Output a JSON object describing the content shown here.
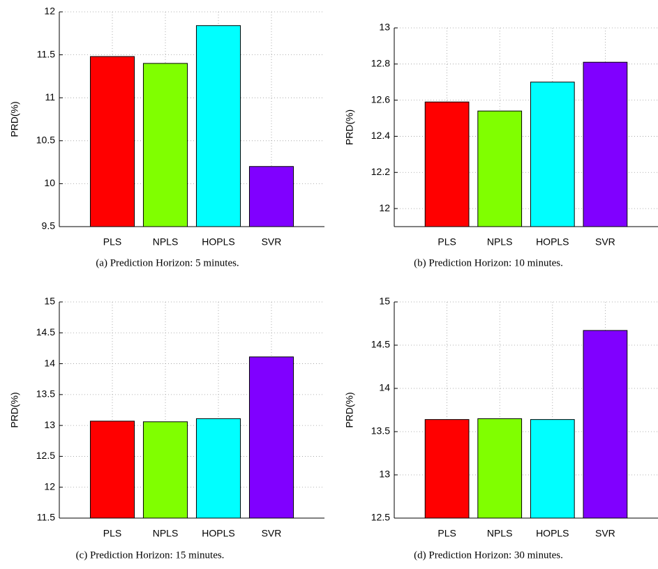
{
  "chart_data": [
    {
      "type": "bar",
      "caption": "(a)  Prediction Horizon: 5 minutes.",
      "y_label": "PRD(%)",
      "categories": [
        "PLS",
        "NPLS",
        "HOPLS",
        "SVR"
      ],
      "values": [
        11.48,
        11.4,
        11.84,
        10.2
      ],
      "colors": [
        "#ff0000",
        "#80ff00",
        "#00ffff",
        "#8000ff"
      ],
      "ylim": [
        9.5,
        12
      ],
      "yticks": [
        9.5,
        10,
        10.5,
        11,
        11.5,
        12
      ],
      "grid": true
    },
    {
      "type": "bar",
      "caption": "(b) Prediction Horizon: 10 minutes.",
      "y_label": "PRD(%)",
      "categories": [
        "PLS",
        "NPLS",
        "HOPLS",
        "SVR"
      ],
      "values": [
        12.59,
        12.54,
        12.7,
        12.81
      ],
      "colors": [
        "#ff0000",
        "#80ff00",
        "#00ffff",
        "#8000ff"
      ],
      "ylim": [
        11.9,
        13
      ],
      "yticks": [
        12,
        12.2,
        12.4,
        12.6,
        12.8,
        13
      ],
      "grid": true
    },
    {
      "type": "bar",
      "caption": "(c) Prediction Horizon: 15 minutes.",
      "y_label": "PRD(%)",
      "categories": [
        "PLS",
        "NPLS",
        "HOPLS",
        "SVR"
      ],
      "values": [
        13.07,
        13.06,
        13.11,
        14.11
      ],
      "colors": [
        "#ff0000",
        "#80ff00",
        "#00ffff",
        "#8000ff"
      ],
      "ylim": [
        11.5,
        15
      ],
      "yticks": [
        11.5,
        12,
        12.5,
        13,
        13.5,
        14,
        14.5,
        15
      ],
      "grid": true
    },
    {
      "type": "bar",
      "caption": "(d) Prediction Horizon: 30 minutes.",
      "y_label": "PRD(%)",
      "categories": [
        "PLS",
        "NPLS",
        "HOPLS",
        "SVR"
      ],
      "values": [
        13.64,
        13.65,
        13.64,
        14.67
      ],
      "colors": [
        "#ff0000",
        "#80ff00",
        "#00ffff",
        "#8000ff"
      ],
      "ylim": [
        12.5,
        15
      ],
      "yticks": [
        12.5,
        13,
        13.5,
        14,
        14.5,
        15
      ],
      "grid": true
    }
  ]
}
